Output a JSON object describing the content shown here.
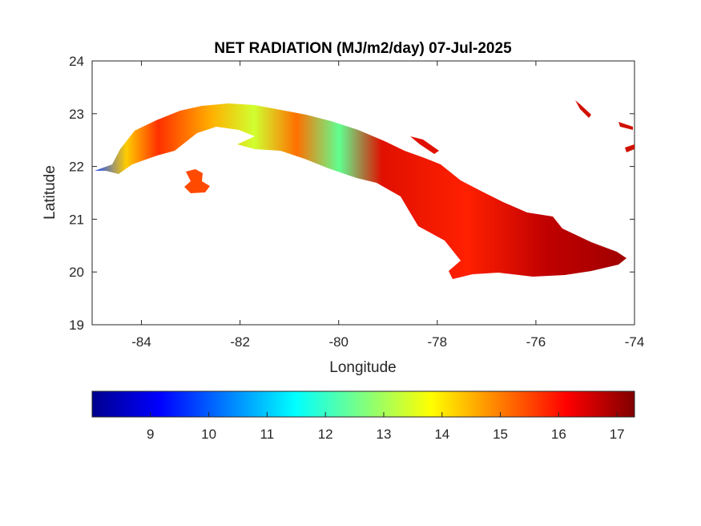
{
  "chart_data": {
    "type": "heatmap",
    "title": "NET RADIATION (MJ/m2/day) 07-Jul-2025",
    "xlabel": "Longitude",
    "ylabel": "Latitude",
    "xlim": [
      -85,
      -74
    ],
    "ylim": [
      19,
      24
    ],
    "xticks": [
      -84,
      -82,
      -80,
      -78,
      -76,
      -74
    ],
    "yticks": [
      19,
      20,
      21,
      22,
      23,
      24
    ],
    "colorbar": {
      "orientation": "horizontal",
      "colormap": "jet",
      "range": [
        8.0,
        17.3
      ],
      "ticks": [
        9,
        10,
        11,
        12,
        13,
        14,
        15,
        16,
        17
      ],
      "colors": [
        "#00008f",
        "#0000ff",
        "#00ffff",
        "#ffff00",
        "#ff0000",
        "#800000"
      ]
    },
    "grid": false
  }
}
